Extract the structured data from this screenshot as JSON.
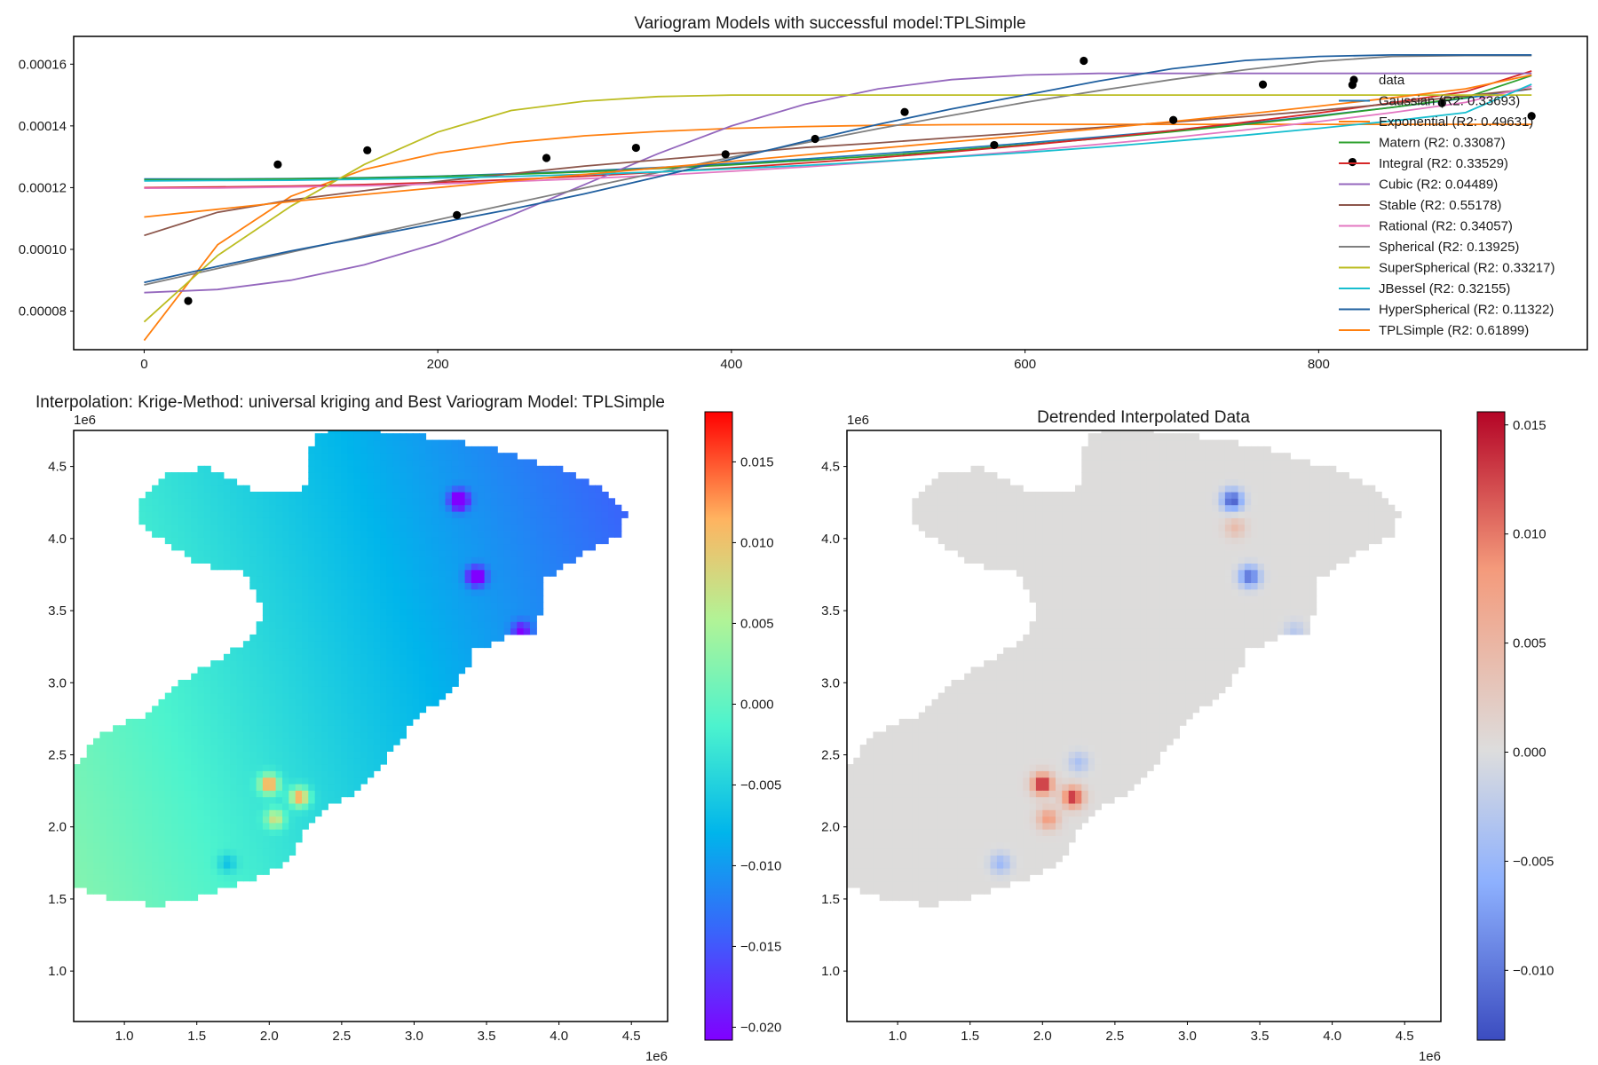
{
  "chart_data": [
    {
      "type": "line",
      "title": "Variogram Models with successful model:TPLSimple",
      "xlabel": "",
      "ylabel": "",
      "xlim": [
        -48,
        983
      ],
      "ylim": [
        6.75e-05,
        0.000169
      ],
      "xticks": [
        0,
        200,
        400,
        600,
        800
      ],
      "yticks": [
        8e-05,
        0.0001,
        0.00012,
        0.00014,
        0.00016
      ],
      "ytick_labels": [
        "0.00008",
        "0.00010",
        "0.00012",
        "0.00014",
        "0.00016"
      ],
      "grid": false,
      "legend_position": "right",
      "points": {
        "name": "data",
        "x": [
          30,
          91,
          152,
          213,
          274,
          335,
          396,
          457,
          518,
          579,
          640,
          701,
          762,
          823,
          884,
          945
        ],
        "y": [
          8.33e-05,
          0.0001275,
          0.0001321,
          0.0001111,
          0.0001296,
          0.0001329,
          0.0001308,
          0.0001358,
          0.0001445,
          0.0001338,
          0.0001611,
          0.0001419,
          0.0001534,
          0.0001533,
          0.0001474,
          0.0001432
        ],
        "overflow_points": [
          {
            "x": 823,
            "y": 0.0001283
          }
        ]
      },
      "x_grid": [
        0,
        50,
        100,
        150,
        200,
        250,
        300,
        350,
        400,
        450,
        500,
        550,
        600,
        650,
        700,
        750,
        800,
        850,
        900,
        945
      ],
      "series": [
        {
          "name": "Gaussian (R2: 0.33693)",
          "color": "#1f77b4",
          "values": [
            0.0001228,
            0.0001228,
            0.0001229,
            0.0001232,
            0.0001237,
            0.0001245,
            0.0001254,
            0.0001265,
            0.0001278,
            0.0001293,
            0.0001309,
            0.0001326,
            0.0001344,
            0.0001364,
            0.0001385,
            0.0001408,
            0.0001433,
            0.000146,
            0.000149,
            0.000152
          ]
        },
        {
          "name": "Exponential (R2: 0.49631)",
          "color": "#ff7f0e",
          "values": [
            7.05e-05,
            0.0001015,
            0.0001172,
            0.0001259,
            0.0001312,
            0.0001346,
            0.0001368,
            0.0001382,
            0.0001392,
            0.0001398,
            0.0001402,
            0.0001404,
            0.0001405,
            0.0001405,
            0.0001405,
            0.0001405,
            0.0001405,
            0.0001405,
            0.0001405,
            0.0001405
          ]
        },
        {
          "name": "Matern (R2: 0.33087)",
          "color": "#2ca02c",
          "values": [
            0.0001225,
            0.0001226,
            0.0001228,
            0.0001231,
            0.0001236,
            0.0001243,
            0.0001251,
            0.0001262,
            0.0001274,
            0.0001288,
            0.0001303,
            0.000132,
            0.0001339,
            0.0001359,
            0.0001381,
            0.0001405,
            0.0001431,
            0.000146,
            0.0001492,
            0.0001563
          ]
        },
        {
          "name": "Integral (R2: 0.33529)",
          "color": "#d62728",
          "values": [
            0.00012,
            0.0001202,
            0.0001205,
            0.000121,
            0.0001217,
            0.0001226,
            0.0001237,
            0.000125,
            0.0001264,
            0.000128,
            0.0001297,
            0.0001316,
            0.0001337,
            0.000136,
            0.0001385,
            0.0001412,
            0.0001442,
            0.0001475,
            0.0001511,
            0.0001578
          ]
        },
        {
          "name": "Cubic (R2: 0.04489)",
          "color": "#9467bd",
          "values": [
            8.6e-05,
            8.7e-05,
            9e-05,
            9.5e-05,
            0.000102,
            0.000111,
            0.000121,
            0.000131,
            0.00014,
            0.000147,
            0.000152,
            0.000155,
            0.0001565,
            0.000157,
            0.000157,
            0.000157,
            0.000157,
            0.000157,
            0.000157,
            0.000157
          ]
        },
        {
          "name": "Stable (R2: 0.55178)",
          "color": "#8c564b",
          "values": [
            0.0001045,
            0.000112,
            0.000116,
            0.000119,
            0.000122,
            0.0001245,
            0.000127,
            0.000129,
            0.000131,
            0.000133,
            0.0001345,
            0.0001362,
            0.0001378,
            0.0001395,
            0.0001412,
            0.000143,
            0.000145,
            0.0001472,
            0.0001497,
            0.000152
          ]
        },
        {
          "name": "Rational (R2: 0.34057)",
          "color": "#e377c2",
          "values": [
            0.0001198,
            0.0001199,
            0.0001202,
            0.0001206,
            0.0001212,
            0.000122,
            0.0001229,
            0.000124,
            0.0001253,
            0.0001267,
            0.0001283,
            0.00013,
            0.0001319,
            0.000134,
            0.0001362,
            0.0001387,
            0.0001414,
            0.0001443,
            0.0001476,
            0.0001528
          ]
        },
        {
          "name": "Spherical (R2: 0.13925)",
          "color": "#7f7f7f",
          "values": [
            8.85e-05,
            9.38e-05,
            9.91e-05,
            0.0001044,
            0.0001096,
            0.0001148,
            0.0001199,
            0.0001249,
            0.0001298,
            0.0001345,
            0.0001391,
            0.0001434,
            0.0001476,
            0.0001514,
            0.000155,
            0.0001582,
            0.0001609,
            0.0001625,
            0.0001628,
            0.0001628
          ]
        },
        {
          "name": "SuperSpherical (R2: 0.33217)",
          "color": "#bcbd22",
          "values": [
            7.65e-05,
            9.8e-05,
            0.000114,
            0.0001275,
            0.000138,
            0.000145,
            0.000148,
            0.0001495,
            0.00015,
            0.00015,
            0.00015,
            0.00015,
            0.00015,
            0.00015,
            0.00015,
            0.00015,
            0.00015,
            0.00015,
            0.00015,
            0.00015
          ]
        },
        {
          "name": "JBessel (R2: 0.32155)",
          "color": "#17becf",
          "values": [
            0.0001222,
            0.0001223,
            0.0001224,
            0.0001227,
            0.0001231,
            0.0001236,
            0.0001243,
            0.0001251,
            0.0001261,
            0.0001272,
            0.0001285,
            0.0001299,
            0.0001314,
            0.0001331,
            0.000135,
            0.000137,
            0.0001392,
            0.0001416,
            0.0001443,
            0.0001535
          ]
        },
        {
          "name": "HyperSpherical (R2: 0.11322)",
          "color": "#1f5f9f",
          "values": [
            8.93e-05,
            9.45e-05,
            9.95e-05,
            0.000104,
            0.0001085,
            0.000113,
            0.000118,
            0.0001235,
            0.0001292,
            0.000135,
            0.0001405,
            0.0001455,
            0.00015,
            0.0001545,
            0.0001585,
            0.0001612,
            0.0001625,
            0.000163,
            0.000163,
            0.000163
          ]
        },
        {
          "name": "TPLSimple (R2: 0.61899)",
          "color": "#ff7f0e",
          "values": [
            0.0001105,
            0.000113,
            0.0001155,
            0.0001178,
            0.00012,
            0.0001222,
            0.0001243,
            0.0001264,
            0.0001285,
            0.0001306,
            0.0001327,
            0.0001348,
            0.0001369,
            0.0001391,
            0.0001414,
            0.0001438,
            0.0001464,
            0.0001491,
            0.000152,
            0.0001565
          ]
        }
      ]
    },
    {
      "type": "heatmap",
      "title": "Interpolation: Krige-Method: universal kriging and Best Variogram Model: TPLSimple",
      "xlim": [
        0.65,
        4.75
      ],
      "ylim": [
        0.65,
        4.75
      ],
      "xticks": [
        1.0,
        1.5,
        2.0,
        2.5,
        3.0,
        3.5,
        4.0,
        4.5
      ],
      "yticks": [
        1.0,
        1.5,
        2.0,
        2.5,
        3.0,
        3.5,
        4.0,
        4.5
      ],
      "x_offset_label": "1e6",
      "y_offset_label": "1e6",
      "colormap": "rainbow",
      "colorbar": {
        "min": -0.0208,
        "max": 0.0181,
        "ticks": [
          -0.02,
          -0.015,
          -0.01,
          -0.005,
          0.0,
          0.005,
          0.01,
          0.015
        ],
        "tick_labels": [
          "−0.020",
          "−0.015",
          "−0.010",
          "−0.005",
          "0.000",
          "0.005",
          "0.010",
          "0.015"
        ]
      },
      "trend": {
        "at_x0": 0.0065,
        "per_x": -0.0035,
        "per_y": -0.0012
      },
      "anomalies": [
        {
          "x": 3.31,
          "y": 4.27,
          "value": -0.02
        },
        {
          "x": 3.43,
          "y": 3.74,
          "value": -0.018
        },
        {
          "x": 2.0,
          "y": 2.3,
          "value": 0.0175
        },
        {
          "x": 2.21,
          "y": 2.21,
          "value": 0.017
        },
        {
          "x": 2.04,
          "y": 2.06,
          "value": 0.011
        },
        {
          "x": 1.71,
          "y": 1.75,
          "value": -0.005
        },
        {
          "x": 3.74,
          "y": 3.36,
          "value": -0.011
        }
      ]
    },
    {
      "type": "heatmap",
      "title": "Detrended Interpolated Data",
      "xlim": [
        0.65,
        4.75
      ],
      "ylim": [
        0.65,
        4.75
      ],
      "xticks": [
        1.0,
        1.5,
        2.0,
        2.5,
        3.0,
        3.5,
        4.0,
        4.5
      ],
      "yticks": [
        1.0,
        1.5,
        2.0,
        2.5,
        3.0,
        3.5,
        4.0,
        4.5
      ],
      "x_offset_label": "1e6",
      "y_offset_label": "1e6",
      "colormap": "coolwarm",
      "colorbar": {
        "min": -0.0132,
        "max": 0.0156,
        "ticks": [
          -0.01,
          -0.005,
          0.0,
          0.005,
          0.01,
          0.015
        ],
        "tick_labels": [
          "−0.010",
          "−0.005",
          "0.000",
          "0.005",
          "0.010",
          "0.015"
        ]
      },
      "anomalies": [
        {
          "x": 3.31,
          "y": 4.27,
          "value": -0.0125
        },
        {
          "x": 3.43,
          "y": 3.74,
          "value": -0.011
        },
        {
          "x": 2.0,
          "y": 2.3,
          "value": 0.015
        },
        {
          "x": 2.21,
          "y": 2.21,
          "value": 0.014
        },
        {
          "x": 2.04,
          "y": 2.06,
          "value": 0.008
        },
        {
          "x": 1.71,
          "y": 1.75,
          "value": -0.005
        },
        {
          "x": 3.74,
          "y": 3.36,
          "value": -0.003
        },
        {
          "x": 3.33,
          "y": 4.08,
          "value": 0.004
        },
        {
          "x": 2.25,
          "y": 2.45,
          "value": -0.004
        }
      ]
    }
  ]
}
